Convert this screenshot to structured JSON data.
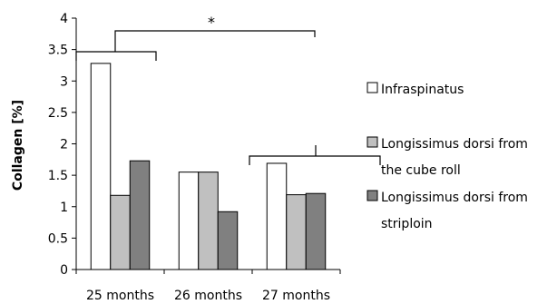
{
  "chart_data": {
    "type": "bar",
    "title": "",
    "xlabel": "",
    "ylabel": "Collagen [%]",
    "ylim": [
      0,
      4
    ],
    "yticks": [
      "0",
      "0.5",
      "1",
      "1.5",
      "2",
      "2.5",
      "3",
      "3.5",
      "4"
    ],
    "categories": [
      "25 months",
      "26 months",
      "27 months"
    ],
    "series": [
      {
        "name": "Infraspinatus",
        "color": "#ffffff",
        "values": [
          3.28,
          1.55,
          1.69
        ]
      },
      {
        "name": "Longissimus dorsi from the cube roll",
        "color": "#c0c0c0",
        "values": [
          1.18,
          1.55,
          1.19
        ]
      },
      {
        "name": "Longissimus dorsi from striploin",
        "color": "#808080",
        "values": [
          1.73,
          0.92,
          1.21
        ]
      }
    ],
    "legend": {
      "placement": "right",
      "entries": [
        {
          "lines": [
            "Infraspinatus"
          ]
        },
        {
          "lines": [
            "Longissimus dorsi from",
            "the cube roll"
          ]
        },
        {
          "lines": [
            "Longissimus dorsi from",
            "striploin"
          ]
        }
      ]
    },
    "grid": false,
    "annotations": [
      {
        "type": "significance-bracket",
        "text": "*",
        "between": [
          "25 months",
          "27 months"
        ]
      }
    ]
  }
}
